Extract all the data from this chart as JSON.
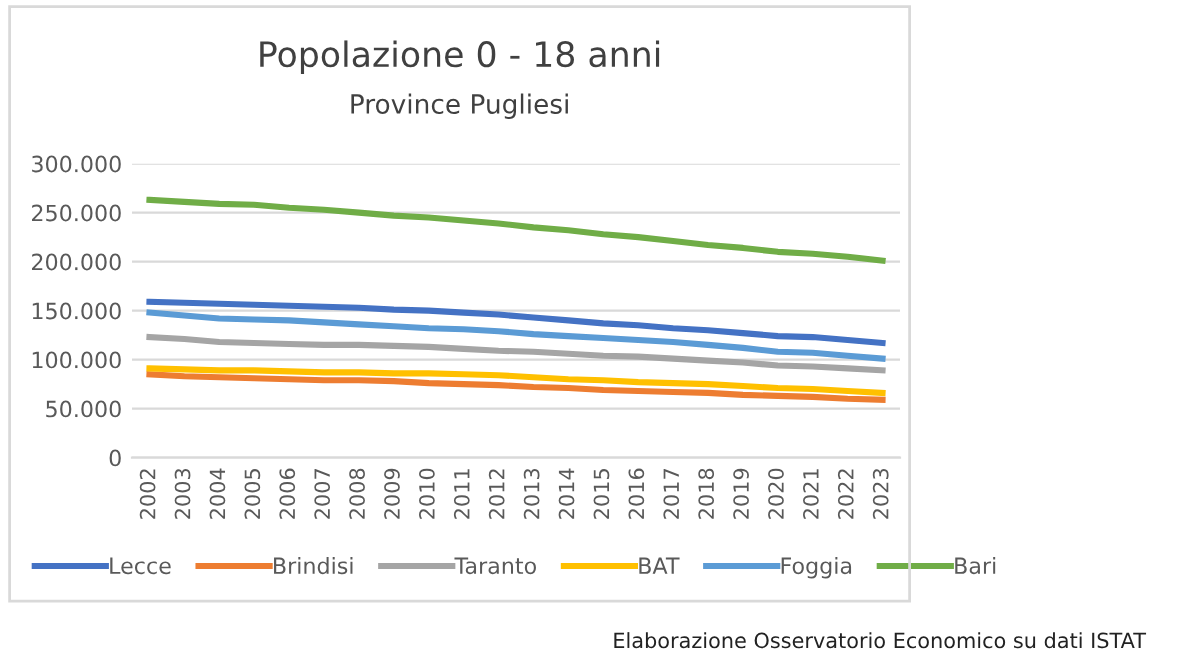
{
  "chart_data": {
    "type": "line",
    "title": "Popolazione 0 - 18 anni",
    "subtitle": "Province Pugliesi",
    "categories": [
      "2002",
      "2003",
      "2004",
      "2005",
      "2006",
      "2007",
      "2008",
      "2009",
      "2010",
      "2011",
      "2012",
      "2013",
      "2014",
      "2015",
      "2016",
      "2017",
      "2018",
      "2019",
      "2020",
      "2021",
      "2022",
      "2023"
    ],
    "series": [
      {
        "name": "Lecce",
        "color": "#4472c4",
        "values": [
          159000,
          158000,
          157000,
          156000,
          155000,
          154000,
          153000,
          151000,
          150000,
          148000,
          146000,
          143000,
          140000,
          137000,
          135000,
          132000,
          130000,
          127000,
          124000,
          123000,
          120000,
          117000
        ]
      },
      {
        "name": "Brindisi",
        "color": "#ed7d31",
        "values": [
          85000,
          83000,
          82000,
          81000,
          80000,
          79000,
          79000,
          78000,
          76000,
          75000,
          74000,
          72000,
          71000,
          69000,
          68000,
          67000,
          66000,
          64000,
          63000,
          62000,
          60000,
          59000
        ]
      },
      {
        "name": "Taranto",
        "color": "#a5a5a5",
        "values": [
          123000,
          121000,
          118000,
          117000,
          116000,
          115000,
          115000,
          114000,
          113000,
          111000,
          109000,
          108000,
          106000,
          104000,
          103000,
          101000,
          99000,
          97000,
          94000,
          93000,
          91000,
          89000
        ]
      },
      {
        "name": "BAT",
        "color": "#ffc000",
        "values": [
          91000,
          90000,
          89000,
          89000,
          88000,
          87000,
          87000,
          86000,
          86000,
          85000,
          84000,
          82000,
          80000,
          79000,
          77000,
          76000,
          75000,
          73000,
          71000,
          70000,
          68000,
          66000
        ]
      },
      {
        "name": "Foggia",
        "color": "#5b9bd5",
        "values": [
          148000,
          145000,
          142000,
          141000,
          140000,
          138000,
          136000,
          134000,
          132000,
          131000,
          129000,
          126000,
          124000,
          122000,
          120000,
          118000,
          115000,
          112000,
          108000,
          107000,
          104000,
          101000
        ]
      },
      {
        "name": "Bari",
        "color": "#70ad47",
        "values": [
          263000,
          261000,
          259000,
          258000,
          255000,
          253000,
          250000,
          247000,
          245000,
          242000,
          239000,
          235000,
          232000,
          228000,
          225000,
          221000,
          217000,
          214000,
          210000,
          208000,
          205000,
          201000
        ]
      }
    ],
    "ylim": [
      0,
      300000
    ],
    "yticks": [
      {
        "value": 0,
        "label": "0"
      },
      {
        "value": 50000,
        "label": "50.000"
      },
      {
        "value": 100000,
        "label": "100.000"
      },
      {
        "value": 150000,
        "label": "150.000"
      },
      {
        "value": 200000,
        "label": "200.000"
      },
      {
        "value": 250000,
        "label": "250.000"
      },
      {
        "value": 300000,
        "label": "300.000"
      }
    ],
    "grid": "y",
    "legend": "bottom",
    "marker": "none",
    "line_style": "solid",
    "annotations": [
      "Elaborazione Osservatorio Economico su dati ISTAT"
    ]
  }
}
